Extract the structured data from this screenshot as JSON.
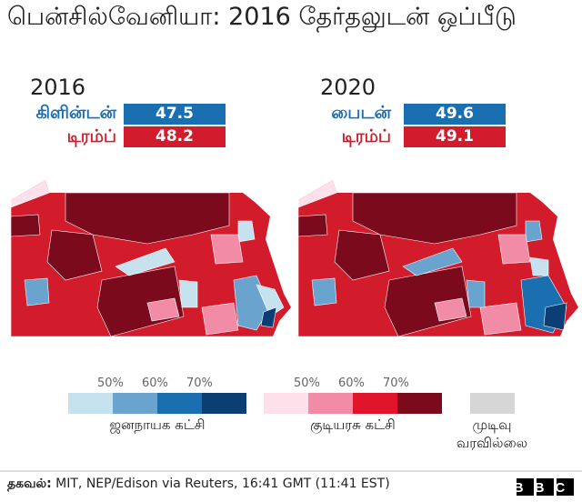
{
  "title": "பென்சில்வேனியா: 2016 தேர்தலுடன் ஒப்பீடு",
  "panels": [
    {
      "year": "2016",
      "candidates": [
        {
          "name": "கிளின்டன்",
          "value": 47.5
        },
        {
          "name": "டிரம்ப்",
          "value": 48.2
        }
      ]
    },
    {
      "year": "2020",
      "candidates": [
        {
          "name": "பைடன்",
          "value": 49.6
        },
        {
          "name": "டிரம்ப்",
          "value": 49.1
        }
      ]
    }
  ],
  "legend": {
    "ticks": [
      "50%",
      "60%",
      "70%"
    ],
    "democrat": "ஜனநாயக கட்சி",
    "republican": "குடியரசு கட்சி",
    "no_result": "முடிவு வரவில்லை"
  },
  "footer": {
    "source_label": "தகவல்:",
    "source": "MIT, NEP/Edison via Reuters, 16:41 GMT (11:41 EST)",
    "logo": "BBC"
  }
}
